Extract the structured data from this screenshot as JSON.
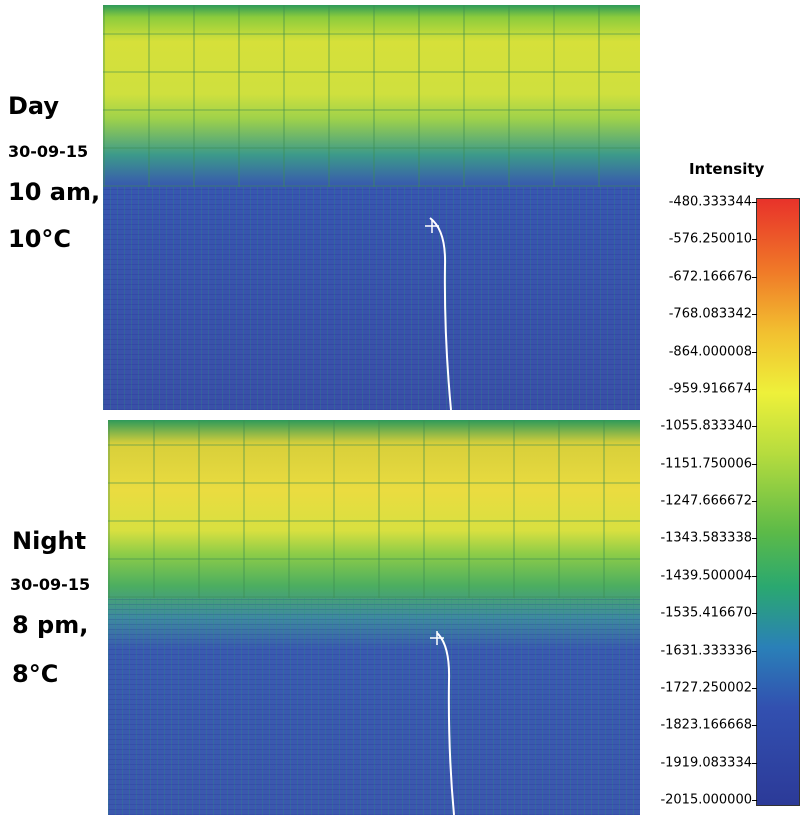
{
  "panels": [
    {
      "label": "Day",
      "date": "30-09-15",
      "time": "10 am,",
      "temperature": "10°C"
    },
    {
      "label": "Night",
      "date": "30-09-15",
      "time": "8 pm,",
      "temperature": "8°C"
    }
  ],
  "colorbar": {
    "title": "Intensity",
    "ticks": [
      "-480.333344",
      "-576.250010",
      "-672.166676",
      "-768.083342",
      "-864.000008",
      "-959.916674",
      "-1055.833340",
      "-1151.750006",
      "-1247.666672",
      "-1343.583338",
      "-1439.500004",
      "-1535.416670",
      "-1631.333336",
      "-1727.250002",
      "-1823.166668",
      "-1919.083334",
      "-2015.000000"
    ]
  }
}
